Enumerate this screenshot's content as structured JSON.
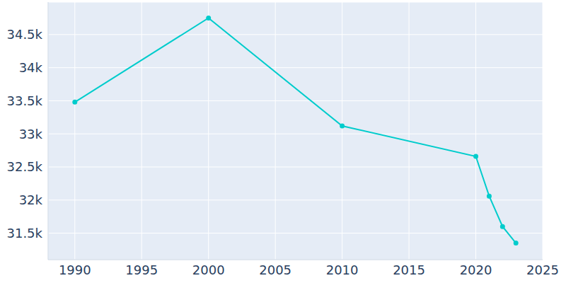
{
  "chart_data": {
    "type": "line",
    "x": [
      1990,
      2000,
      2010,
      2020,
      2021,
      2022,
      2023
    ],
    "values": [
      33480,
      34750,
      33120,
      32660,
      32060,
      31600,
      31350
    ],
    "color": "#00cccc",
    "marker": "circle",
    "xlim": [
      1988,
      2025
    ],
    "xticks": [
      1990,
      1995,
      2000,
      2005,
      2010,
      2015,
      2020,
      2025
    ],
    "ylim": [
      31100,
      34990
    ],
    "yticks": [
      {
        "value": 31500,
        "label": "31.5k"
      },
      {
        "value": 32000,
        "label": "32k"
      },
      {
        "value": 32500,
        "label": "32.5k"
      },
      {
        "value": 33000,
        "label": "33k"
      },
      {
        "value": 33500,
        "label": "33.5k"
      },
      {
        "value": 34000,
        "label": "34k"
      },
      {
        "value": 34500,
        "label": "34.5k"
      }
    ],
    "grid": true
  }
}
